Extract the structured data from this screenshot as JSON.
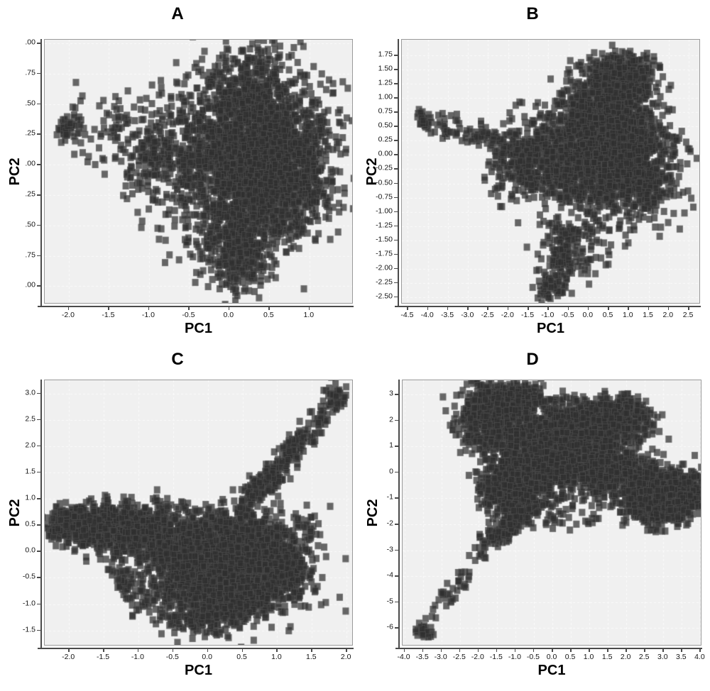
{
  "figure": {
    "description": "Four-panel PCA scatter figure, panels A-D, dark gray square markers on light gray plot background with white dashed gridlines"
  },
  "style": {
    "panel_bg": "#f0f0f0",
    "grid_color": "#fbfbfb",
    "border_color": "#9a9a9a",
    "axis_color": "#4a4a4a",
    "text_color": "#141414",
    "marker_color": "#2f2f2f",
    "marker_edge": "#8c8c8c",
    "marker_alpha": 0.72,
    "marker_w": 9,
    "marker_h": 10
  },
  "chart_data": [
    {
      "type": "scatter",
      "title": "A",
      "xlabel": "PC1",
      "ylabel": "PC2",
      "xlim": [
        -2.3,
        1.55
      ],
      "ylim": [
        -1.15,
        1.03
      ],
      "seed": 11,
      "xticks": [
        {
          "v": -2.0,
          "label": "-2.0"
        },
        {
          "v": -1.5,
          "label": "-1.5"
        },
        {
          "v": -1.0,
          "label": "-1.0"
        },
        {
          "v": -0.5,
          "label": "-0.5"
        },
        {
          "v": 0.0,
          "label": "0.0"
        },
        {
          "v": 0.5,
          "label": "0.5"
        },
        {
          "v": 1.0,
          "label": "1.0"
        }
      ],
      "yticks": [
        {
          "v": 1.0,
          "label": ".00"
        },
        {
          "v": 0.75,
          "label": ".75"
        },
        {
          "v": 0.5,
          "label": ".50"
        },
        {
          "v": 0.25,
          "label": ".25"
        },
        {
          "v": 0.0,
          "label": ".00"
        },
        {
          "v": -0.25,
          "label": ".25"
        },
        {
          "v": -0.5,
          "label": ".50"
        },
        {
          "v": -0.75,
          "label": ".75"
        },
        {
          "v": -1.0,
          "label": ".00"
        }
      ],
      "clusters": [
        {
          "kind": "gauss",
          "n": 1500,
          "cx": 0.3,
          "cy": 0.05,
          "sx": 0.42,
          "sy": 0.33
        },
        {
          "kind": "gauss",
          "n": 600,
          "cx": 0.55,
          "cy": -0.05,
          "sx": 0.33,
          "sy": 0.28
        },
        {
          "kind": "gauss",
          "n": 350,
          "cx": 0.15,
          "cy": 0.5,
          "sx": 0.32,
          "sy": 0.22
        },
        {
          "kind": "gauss",
          "n": 260,
          "cx": 0.1,
          "cy": -0.5,
          "sx": 0.28,
          "sy": 0.22
        },
        {
          "kind": "gauss",
          "n": 200,
          "cx": 0.15,
          "cy": -0.78,
          "sx": 0.18,
          "sy": 0.14
        },
        {
          "kind": "gauss",
          "n": 280,
          "cx": -0.5,
          "cy": 0.0,
          "sx": 0.33,
          "sy": 0.28
        },
        {
          "kind": "gauss",
          "n": 120,
          "cx": -0.9,
          "cy": 0.1,
          "sx": 0.3,
          "sy": 0.25
        },
        {
          "kind": "trail",
          "n": 110,
          "x1": -0.7,
          "y1": 0.2,
          "x2": -1.95,
          "y2": 0.3,
          "jx": 0.12,
          "jy": 0.13
        },
        {
          "kind": "gauss",
          "n": 40,
          "cx": -2.02,
          "cy": 0.3,
          "sx": 0.08,
          "sy": 0.05
        },
        {
          "kind": "gauss",
          "n": 60,
          "cx": 0.9,
          "cy": 0.35,
          "sx": 0.25,
          "sy": 0.25
        },
        {
          "kind": "gauss",
          "n": 80,
          "cx": 0.35,
          "cy": 0.75,
          "sx": 0.25,
          "sy": 0.12
        },
        {
          "kind": "gauss",
          "n": 90,
          "cx": 1.0,
          "cy": -0.1,
          "sx": 0.2,
          "sy": 0.25
        }
      ]
    },
    {
      "type": "scatter",
      "title": "B",
      "xlabel": "PC1",
      "ylabel": "PC2",
      "xlim": [
        -4.65,
        2.8
      ],
      "ylim": [
        -2.63,
        2.03
      ],
      "seed": 22,
      "xticks": [
        {
          "v": -4.5,
          "label": "-4.5"
        },
        {
          "v": -4.0,
          "label": "-4.0"
        },
        {
          "v": -3.5,
          "label": "-3.5"
        },
        {
          "v": -3.0,
          "label": "-3.0"
        },
        {
          "v": -2.5,
          "label": "-2.5"
        },
        {
          "v": -2.0,
          "label": "-2.0"
        },
        {
          "v": -1.5,
          "label": "-1.5"
        },
        {
          "v": -1.0,
          "label": "-1.0"
        },
        {
          "v": -0.5,
          "label": "-0.5"
        },
        {
          "v": 0.0,
          "label": "0.0"
        },
        {
          "v": 0.5,
          "label": "0.5"
        },
        {
          "v": 1.0,
          "label": "1.0"
        },
        {
          "v": 1.5,
          "label": "1.5"
        },
        {
          "v": 2.0,
          "label": "2.0"
        },
        {
          "v": 2.5,
          "label": "2.5"
        }
      ],
      "yticks": [
        {
          "v": 1.75,
          "label": "1.75"
        },
        {
          "v": 1.5,
          "label": "1.50"
        },
        {
          "v": 1.25,
          "label": "1.25"
        },
        {
          "v": 1.0,
          "label": "1.00"
        },
        {
          "v": 0.75,
          "label": "0.75"
        },
        {
          "v": 0.5,
          "label": "0.50"
        },
        {
          "v": 0.25,
          "label": "0.25"
        },
        {
          "v": 0.0,
          "label": "0.00"
        },
        {
          "v": -0.25,
          "label": "-0.25"
        },
        {
          "v": -0.5,
          "label": "-0.50"
        },
        {
          "v": -0.75,
          "label": "-0.75"
        },
        {
          "v": -1.0,
          "label": "-1.00"
        },
        {
          "v": -1.25,
          "label": "-1.25"
        },
        {
          "v": -1.5,
          "label": "-1.50"
        },
        {
          "v": -1.75,
          "label": "-1.75"
        },
        {
          "v": -2.0,
          "label": "-2.00"
        },
        {
          "v": -2.25,
          "label": "-2.25"
        },
        {
          "v": -2.5,
          "label": "-2.50"
        }
      ],
      "clusters": [
        {
          "kind": "gauss",
          "n": 1600,
          "cx": 0.35,
          "cy": 0.1,
          "sx": 0.7,
          "sy": 0.5
        },
        {
          "kind": "gauss",
          "n": 500,
          "cx": 0.5,
          "cy": 0.95,
          "sx": 0.5,
          "sy": 0.35
        },
        {
          "kind": "gauss",
          "n": 250,
          "cx": 0.9,
          "cy": 1.4,
          "sx": 0.4,
          "sy": 0.22
        },
        {
          "kind": "gauss",
          "n": 350,
          "cx": 1.3,
          "cy": -0.3,
          "sx": 0.5,
          "sy": 0.45
        },
        {
          "kind": "gauss",
          "n": 300,
          "cx": -1.0,
          "cy": -0.15,
          "sx": 0.55,
          "sy": 0.4
        },
        {
          "kind": "gauss",
          "n": 150,
          "cx": -1.8,
          "cy": -0.2,
          "sx": 0.4,
          "sy": 0.35
        },
        {
          "kind": "trail",
          "n": 80,
          "x1": -1.9,
          "y1": 0.2,
          "x2": -3.8,
          "y2": 0.55,
          "jx": 0.15,
          "jy": 0.12
        },
        {
          "kind": "gauss",
          "n": 35,
          "cx": -4.1,
          "cy": 0.6,
          "sx": 0.12,
          "sy": 0.08
        },
        {
          "kind": "trail",
          "n": 120,
          "x1": -0.5,
          "y1": -1.3,
          "x2": -0.75,
          "y2": -2.3,
          "jx": 0.22,
          "jy": 0.12
        },
        {
          "kind": "gauss",
          "n": 90,
          "cx": -0.2,
          "cy": -1.6,
          "sx": 0.55,
          "sy": 0.35
        },
        {
          "kind": "gauss",
          "n": 30,
          "cx": -1.0,
          "cy": -2.35,
          "sx": 0.15,
          "sy": 0.1
        }
      ]
    },
    {
      "type": "scatter",
      "title": "C",
      "xlabel": "PC1",
      "ylabel": "PC2",
      "xlim": [
        -2.35,
        2.1
      ],
      "ylim": [
        -1.8,
        3.25
      ],
      "seed": 33,
      "xticks": [
        {
          "v": -2.0,
          "label": "-2.0"
        },
        {
          "v": -1.5,
          "label": "-1.5"
        },
        {
          "v": -1.0,
          "label": "-1.0"
        },
        {
          "v": -0.5,
          "label": "-0.5"
        },
        {
          "v": 0.0,
          "label": "0.0"
        },
        {
          "v": 0.5,
          "label": "0.5"
        },
        {
          "v": 1.0,
          "label": "1.0"
        },
        {
          "v": 1.5,
          "label": "1.5"
        },
        {
          "v": 2.0,
          "label": "2.0"
        }
      ],
      "yticks": [
        {
          "v": 3.0,
          "label": "3.0"
        },
        {
          "v": 2.5,
          "label": "2.5"
        },
        {
          "v": 2.0,
          "label": "2.0"
        },
        {
          "v": 1.5,
          "label": "1.5"
        },
        {
          "v": 1.0,
          "label": "1.0"
        },
        {
          "v": 0.5,
          "label": "0.5"
        },
        {
          "v": 0.0,
          "label": "0.0"
        },
        {
          "v": -0.5,
          "label": "-0.5"
        },
        {
          "v": -1.0,
          "label": "-1.0"
        },
        {
          "v": -1.5,
          "label": "-1.5"
        }
      ],
      "clusters": [
        {
          "kind": "gauss",
          "n": 500,
          "cx": -1.5,
          "cy": 0.45,
          "sx": 0.35,
          "sy": 0.2
        },
        {
          "kind": "gauss",
          "n": 250,
          "cx": -1.95,
          "cy": 0.5,
          "sx": 0.18,
          "sy": 0.16
        },
        {
          "kind": "gauss",
          "n": 300,
          "cx": -1.0,
          "cy": 0.35,
          "sx": 0.28,
          "sy": 0.2
        },
        {
          "kind": "gauss",
          "n": 300,
          "cx": -0.55,
          "cy": 0.2,
          "sx": 0.3,
          "sy": 0.25
        },
        {
          "kind": "gauss",
          "n": 1700,
          "cx": 0.25,
          "cy": -0.3,
          "sx": 0.5,
          "sy": 0.35
        },
        {
          "kind": "gauss",
          "n": 500,
          "cx": 0.35,
          "cy": 0.25,
          "sx": 0.38,
          "sy": 0.28
        },
        {
          "kind": "gauss",
          "n": 400,
          "cx": 0.9,
          "cy": -0.4,
          "sx": 0.3,
          "sy": 0.33
        },
        {
          "kind": "gauss",
          "n": 350,
          "cx": 0.15,
          "cy": -0.9,
          "sx": 0.45,
          "sy": 0.25
        },
        {
          "kind": "gauss",
          "n": 120,
          "cx": 0.0,
          "cy": -1.3,
          "sx": 0.35,
          "sy": 0.18
        },
        {
          "kind": "trail",
          "n": 240,
          "x1": 0.45,
          "y1": 0.7,
          "x2": 1.5,
          "y2": 2.3,
          "jx": 0.12,
          "jy": 0.12
        },
        {
          "kind": "trail",
          "n": 35,
          "x1": 1.55,
          "y1": 2.35,
          "x2": 1.85,
          "y2": 2.95,
          "jx": 0.08,
          "jy": 0.07
        },
        {
          "kind": "gauss",
          "n": 30,
          "cx": 1.85,
          "cy": 3.0,
          "sx": 0.08,
          "sy": 0.1
        },
        {
          "kind": "trail",
          "n": 70,
          "x1": -1.35,
          "y1": -0.3,
          "x2": -0.95,
          "y2": -1.0,
          "jx": 0.12,
          "jy": 0.12
        },
        {
          "kind": "gauss",
          "n": 50,
          "cx": -0.85,
          "cy": 0.85,
          "sx": 0.4,
          "sy": 0.12
        },
        {
          "kind": "gauss",
          "n": 80,
          "cx": 1.2,
          "cy": 0.4,
          "sx": 0.25,
          "sy": 0.3
        }
      ]
    },
    {
      "type": "scatter",
      "title": "D",
      "xlabel": "PC1",
      "ylabel": "PC2",
      "xlim": [
        -4.05,
        4.05
      ],
      "ylim": [
        -6.7,
        3.55
      ],
      "seed": 44,
      "xticks": [
        {
          "v": -4.0,
          "label": "-4.0"
        },
        {
          "v": -3.5,
          "label": "-3.5"
        },
        {
          "v": -3.0,
          "label": "-3.0"
        },
        {
          "v": -2.5,
          "label": "-2.5"
        },
        {
          "v": -2.0,
          "label": "-2.0"
        },
        {
          "v": -1.5,
          "label": "-1.5"
        },
        {
          "v": -1.0,
          "label": "-1.0"
        },
        {
          "v": -0.5,
          "label": "-0.5"
        },
        {
          "v": 0.0,
          "label": "0.0"
        },
        {
          "v": 0.5,
          "label": "0.5"
        },
        {
          "v": 1.0,
          "label": "1.0"
        },
        {
          "v": 1.5,
          "label": "1.5"
        },
        {
          "v": 2.0,
          "label": "2.0"
        },
        {
          "v": 2.5,
          "label": "2.5"
        },
        {
          "v": 3.0,
          "label": "3.0"
        },
        {
          "v": 3.5,
          "label": "3.5"
        },
        {
          "v": 4.0,
          "label": "4.0"
        }
      ],
      "yticks": [
        {
          "v": 3,
          "label": "3"
        },
        {
          "v": 2,
          "label": "2"
        },
        {
          "v": 1,
          "label": "1"
        },
        {
          "v": 0,
          "label": "0"
        },
        {
          "v": -1,
          "label": "-1"
        },
        {
          "v": -2,
          "label": "-2"
        },
        {
          "v": -3,
          "label": "-3"
        },
        {
          "v": -4,
          "label": "-4"
        },
        {
          "v": -5,
          "label": "-5"
        },
        {
          "v": -6,
          "label": "-6"
        }
      ],
      "clusters": [
        {
          "kind": "gauss",
          "n": 650,
          "cx": -1.6,
          "cy": 2.0,
          "sx": 0.42,
          "sy": 0.6
        },
        {
          "kind": "gauss",
          "n": 350,
          "cx": -1.1,
          "cy": 2.8,
          "sx": 0.5,
          "sy": 0.3
        },
        {
          "kind": "gauss",
          "n": 900,
          "cx": 0.6,
          "cy": 1.6,
          "sx": 0.85,
          "sy": 0.5
        },
        {
          "kind": "gauss",
          "n": 350,
          "cx": 1.6,
          "cy": 2.2,
          "sx": 0.5,
          "sy": 0.4
        },
        {
          "kind": "gauss",
          "n": 700,
          "cx": -0.7,
          "cy": 0.1,
          "sx": 0.5,
          "sy": 0.6
        },
        {
          "kind": "gauss",
          "n": 500,
          "cx": 0.6,
          "cy": 0.4,
          "sx": 0.6,
          "sy": 0.5
        },
        {
          "kind": "gauss",
          "n": 400,
          "cx": 1.7,
          "cy": -0.1,
          "sx": 0.5,
          "sy": 0.4
        },
        {
          "kind": "gauss",
          "n": 800,
          "cx": 2.9,
          "cy": -0.9,
          "sx": 0.5,
          "sy": 0.5
        },
        {
          "kind": "gauss",
          "n": 200,
          "cx": 3.6,
          "cy": -0.9,
          "sx": 0.22,
          "sy": 0.45
        },
        {
          "kind": "gauss",
          "n": 300,
          "cx": -1.2,
          "cy": -0.8,
          "sx": 0.35,
          "sy": 0.45
        },
        {
          "kind": "trail",
          "n": 220,
          "x1": -0.5,
          "y1": -1.2,
          "x2": -1.7,
          "y2": -2.7,
          "jx": 0.2,
          "jy": 0.15
        },
        {
          "kind": "trail",
          "n": 45,
          "x1": -1.8,
          "y1": -2.9,
          "x2": -3.2,
          "y2": -5.5,
          "jx": 0.14,
          "jy": 0.14
        },
        {
          "kind": "gauss",
          "n": 30,
          "cx": -3.45,
          "cy": -6.1,
          "sx": 0.13,
          "sy": 0.16
        },
        {
          "kind": "gauss",
          "n": 70,
          "cx": 0.2,
          "cy": -1.5,
          "sx": 0.7,
          "sy": 0.4
        }
      ]
    }
  ]
}
